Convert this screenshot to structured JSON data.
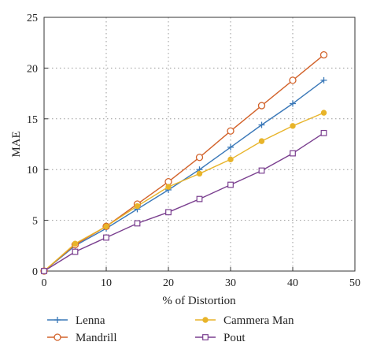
{
  "chart_data": {
    "type": "line",
    "title": "",
    "xlabel": "% of Distortion",
    "ylabel": "MAE",
    "xlim": [
      0,
      50
    ],
    "ylim": [
      0,
      25
    ],
    "xticks": [
      0,
      10,
      20,
      30,
      40,
      50
    ],
    "yticks": [
      0,
      5,
      10,
      15,
      20,
      25
    ],
    "grid": true,
    "legend_position": "bottom",
    "x": [
      0,
      5,
      10,
      15,
      20,
      25,
      30,
      35,
      40,
      45
    ],
    "series": [
      {
        "name": "Lenna",
        "color": "#3a78b8",
        "marker": "plus",
        "values": [
          0,
          2.5,
          4.2,
          6.1,
          8.0,
          10.0,
          12.2,
          14.4,
          16.5,
          18.8
        ]
      },
      {
        "name": "Mandrill",
        "color": "#d2622a",
        "marker": "circle",
        "values": [
          0,
          2.6,
          4.4,
          6.6,
          8.8,
          11.2,
          13.8,
          16.3,
          18.8,
          21.3
        ]
      },
      {
        "name": "Cammera Man",
        "color": "#e8b42a",
        "marker": "dot",
        "values": [
          0,
          2.7,
          4.4,
          6.4,
          8.3,
          9.6,
          11.0,
          12.8,
          14.3,
          15.6
        ]
      },
      {
        "name": "Pout",
        "color": "#7a3f8f",
        "marker": "square",
        "values": [
          0,
          1.9,
          3.3,
          4.7,
          5.8,
          7.1,
          8.5,
          9.9,
          11.6,
          13.6
        ]
      }
    ]
  }
}
